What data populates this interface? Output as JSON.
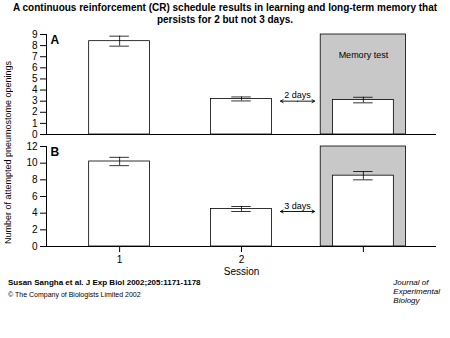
{
  "chart_data": [
    {
      "type": "bar",
      "title": "A continuous reinforcement (CR) schedule results in learning and long-term memory that persists for 2 but not 3 days.",
      "ylabel": "Number of attempted pneumostome openings",
      "categories": [
        null,
        null,
        null
      ],
      "values": [
        8.4,
        3.2,
        3.1
      ],
      "errors": [
        0.45,
        0.18,
        0.25
      ],
      "colors": [
        "white",
        "white",
        "white"
      ],
      "ylim": [
        0,
        9
      ],
      "yticks": [
        0,
        1,
        2,
        3,
        4,
        5,
        6,
        7,
        8,
        9
      ],
      "tick_labels": "y",
      "annotations": [
        {
          "type": "panel_label",
          "text": "A"
        },
        {
          "type": "band",
          "color": "#c8c8c8",
          "text": "Memory test",
          "y": 7.5
        },
        {
          "type": "arrow",
          "text": "2 days",
          "y": 3.0
        }
      ]
    },
    {
      "type": "bar",
      "xlabel": "Session",
      "categories": [
        "1",
        "2",
        null
      ],
      "values": [
        10.2,
        4.5,
        8.5
      ],
      "errors": [
        0.5,
        0.3,
        0.5
      ],
      "colors": [
        "white",
        "white",
        "white"
      ],
      "ylim": [
        0,
        12
      ],
      "yticks": [
        0,
        2,
        4,
        6,
        8,
        10,
        12
      ],
      "annotations": [
        {
          "type": "panel_label",
          "text": "B"
        },
        {
          "type": "band",
          "color": "#c8c8c8"
        },
        {
          "type": "arrow",
          "text": "3 days",
          "y": 4.2
        },
        {
          "type": "citation",
          "text": "Susan Sangha et al. J Exp Biol 2002;205:1171-1178"
        },
        {
          "type": "copyright",
          "text": "© The Company of Biologists Limited 2002"
        },
        {
          "type": "logo",
          "text": "Journal of\nExperimental\nBiology"
        }
      ]
    }
  ]
}
